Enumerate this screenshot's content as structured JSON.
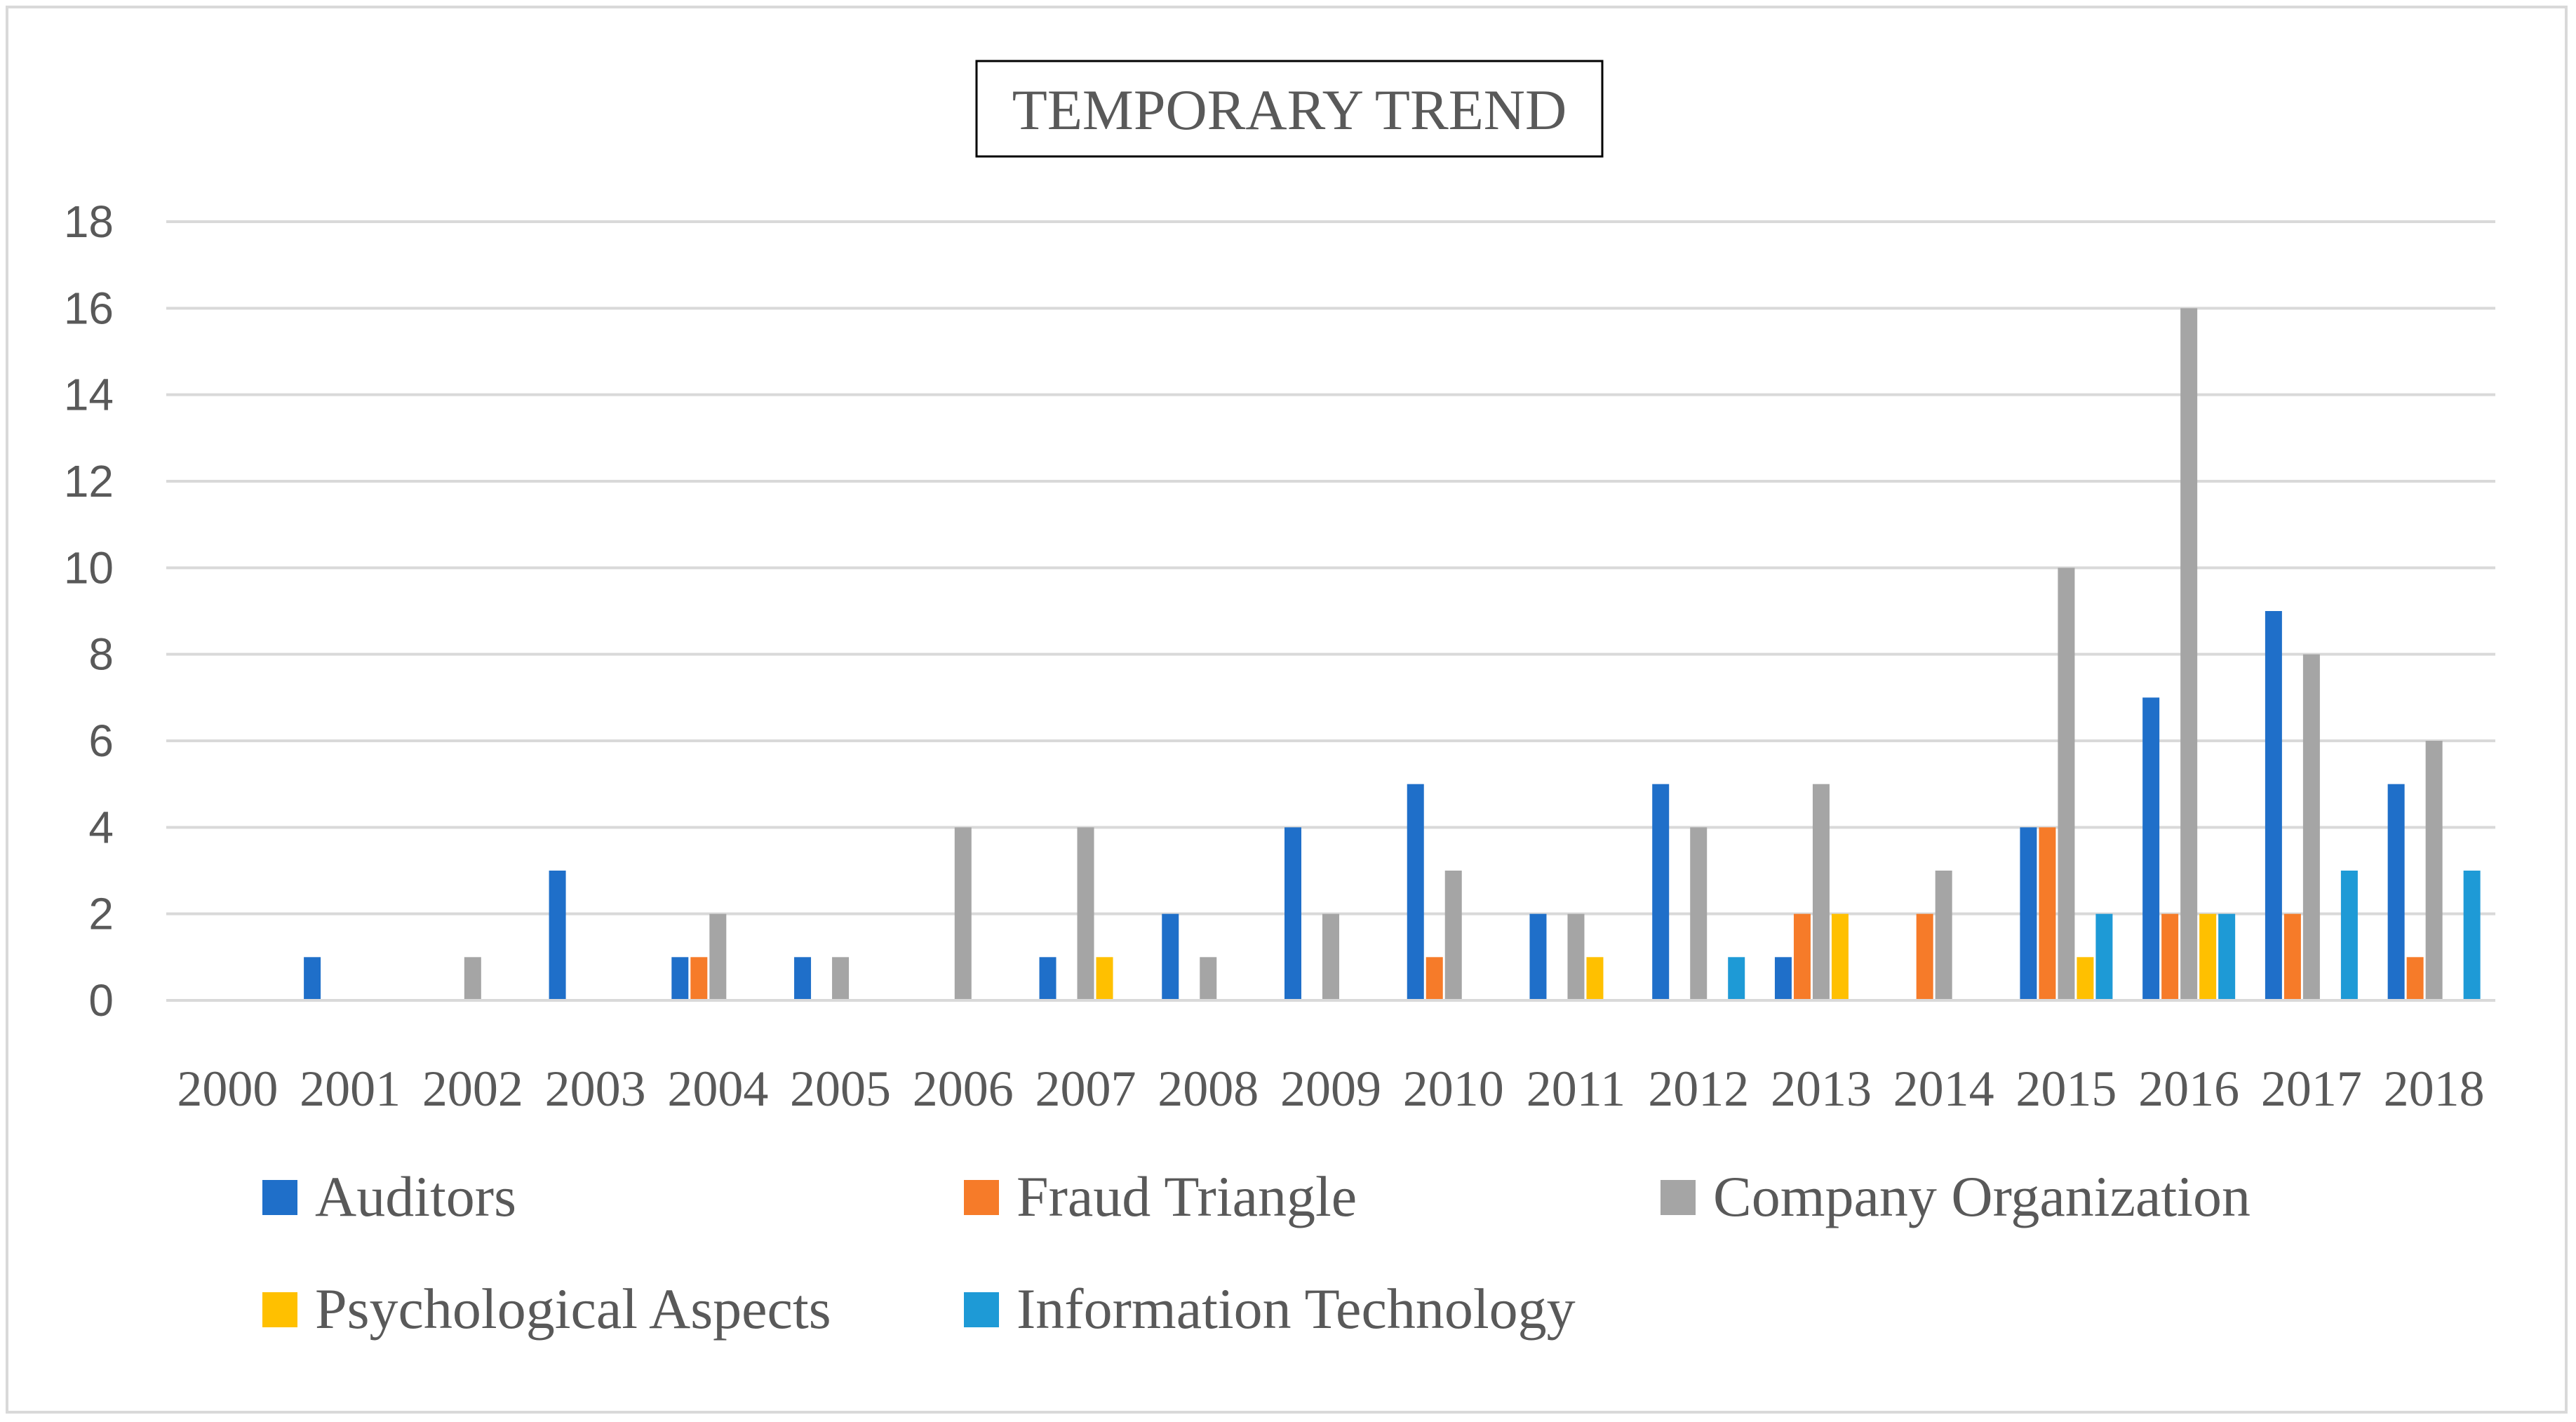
{
  "chart_data": {
    "type": "bar",
    "title": "TEMPORARY TREND",
    "xlabel": "",
    "ylabel": "",
    "ylim": [
      0,
      18
    ],
    "yticks": [
      0,
      2,
      4,
      6,
      8,
      10,
      12,
      14,
      16,
      18
    ],
    "grid": true,
    "legend_position": "bottom",
    "categories": [
      "2000",
      "2001",
      "2002",
      "2003",
      "2004",
      "2005",
      "2006",
      "2007",
      "2008",
      "2009",
      "2010",
      "2011",
      "2012",
      "2013",
      "2014",
      "2015",
      "2016",
      "2017",
      "2018"
    ],
    "series": [
      {
        "name": "Auditors",
        "color": "#1f6fc9",
        "values": [
          0,
          1,
          0,
          3,
          1,
          1,
          0,
          1,
          2,
          4,
          5,
          2,
          5,
          1,
          0,
          4,
          7,
          9,
          5
        ]
      },
      {
        "name": "Fraud Triangle",
        "color": "#f67b29",
        "values": [
          0,
          0,
          0,
          0,
          1,
          0,
          0,
          0,
          0,
          0,
          1,
          0,
          0,
          2,
          2,
          4,
          2,
          2,
          1
        ]
      },
      {
        "name": "Company Organization",
        "color": "#a5a5a5",
        "values": [
          0,
          0,
          1,
          0,
          2,
          1,
          4,
          4,
          1,
          2,
          3,
          2,
          4,
          5,
          3,
          10,
          16,
          8,
          6
        ]
      },
      {
        "name": "Psychological Aspects",
        "color": "#ffc000",
        "values": [
          0,
          0,
          0,
          0,
          0,
          0,
          0,
          1,
          0,
          0,
          0,
          1,
          0,
          2,
          0,
          1,
          2,
          0,
          0
        ]
      },
      {
        "name": "Information Technology",
        "color": "#1e9ad6",
        "values": [
          0,
          0,
          0,
          0,
          0,
          0,
          0,
          0,
          0,
          0,
          0,
          0,
          1,
          0,
          0,
          2,
          2,
          3,
          3
        ]
      }
    ]
  }
}
